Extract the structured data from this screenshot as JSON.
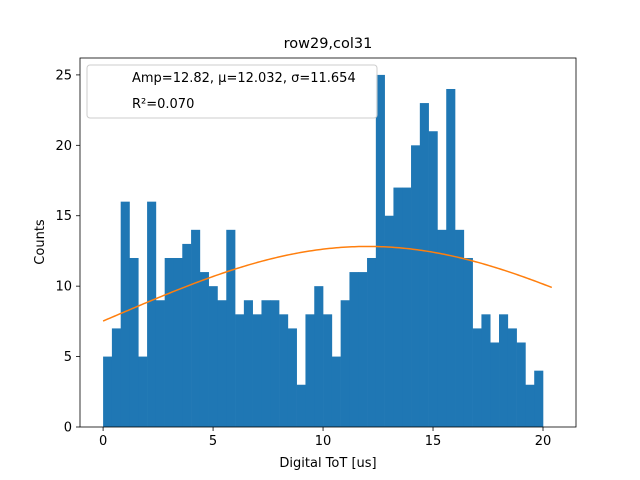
{
  "chart_data": {
    "type": "bar",
    "title": "row29,col31",
    "xlabel": "Digital ToT [us]",
    "ylabel": "Counts",
    "xlim": [
      -1.05,
      21.5
    ],
    "ylim": [
      0,
      26.2
    ],
    "xticks": [
      0,
      5,
      10,
      15,
      20
    ],
    "yticks": [
      0,
      5,
      10,
      15,
      20,
      25
    ],
    "bin_start": 0.0,
    "bin_width": 0.4,
    "counts": [
      5,
      7,
      16,
      12,
      5,
      16,
      9,
      12,
      12,
      13,
      14,
      11,
      10,
      9,
      14,
      8,
      9,
      8,
      9,
      9,
      8,
      7,
      3,
      8,
      10,
      8,
      5,
      9,
      11,
      11,
      12,
      25,
      15,
      17,
      17,
      20,
      23,
      21,
      14,
      24,
      14,
      12,
      7,
      8,
      6,
      8,
      7,
      6,
      3,
      4
    ],
    "bar_color": "#1f77b4",
    "fit": {
      "name": "Amp=12.82, μ=12.032, σ=11.654",
      "amp": 12.82,
      "mu": 12.032,
      "sigma": 11.654,
      "x_range": [
        0,
        20.4
      ],
      "color": "#ff7f0e"
    },
    "legend": {
      "position": "top-left",
      "lines": [
        "Amp=12.82, μ=12.032, σ=11.654",
        "R²=0.070"
      ]
    },
    "grid": false
  }
}
